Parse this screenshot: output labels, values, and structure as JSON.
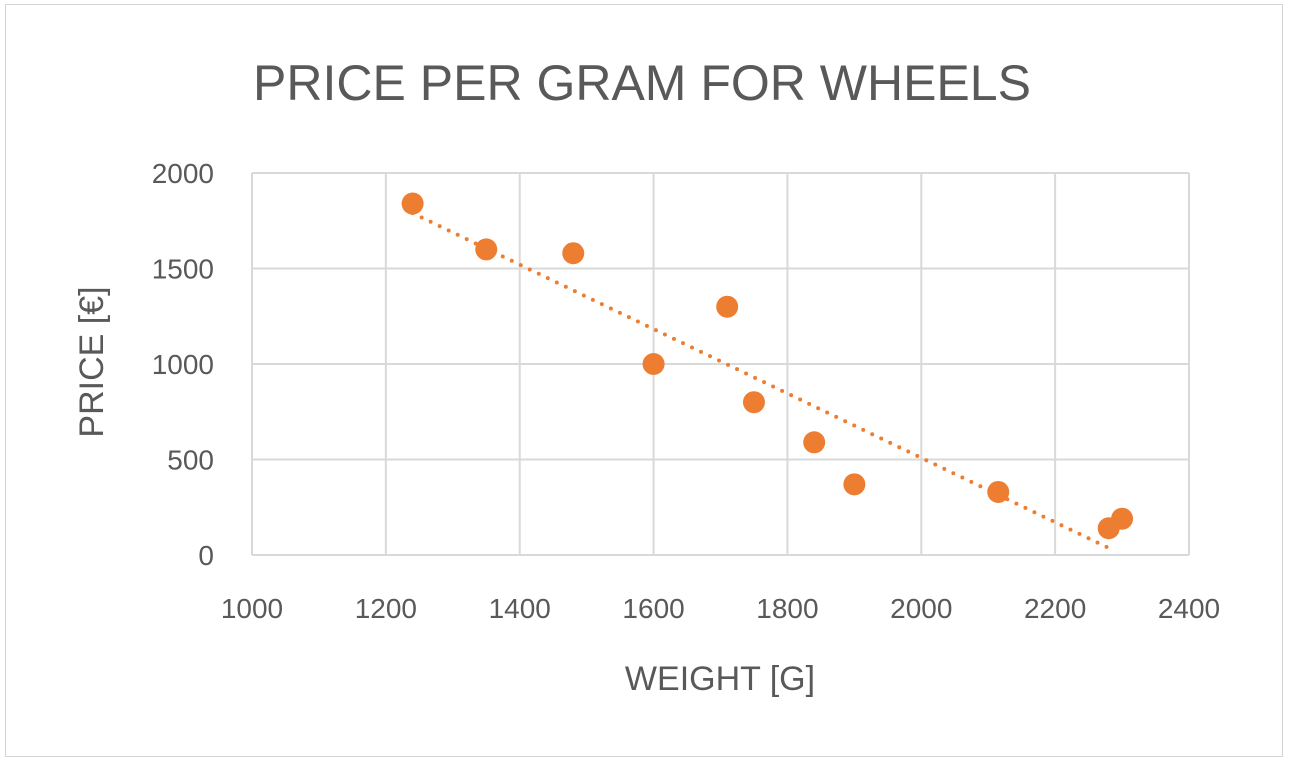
{
  "chart_data": {
    "type": "scatter",
    "title": "PRICE PER GRAM FOR WHEELS",
    "xlabel": "WEIGHT [G]",
    "ylabel": "PRICE [€]",
    "xlim": [
      1000,
      2400
    ],
    "ylim": [
      0,
      2000
    ],
    "x_ticks": [
      1000,
      1200,
      1400,
      1600,
      1800,
      2000,
      2200,
      2400
    ],
    "y_ticks": [
      0,
      500,
      1000,
      1500,
      2000
    ],
    "grid": true,
    "legend": "none",
    "series": [
      {
        "color": "#ed7d31",
        "points": [
          {
            "x": 1240,
            "y": 1840
          },
          {
            "x": 1350,
            "y": 1600
          },
          {
            "x": 1480,
            "y": 1580
          },
          {
            "x": 1600,
            "y": 1000
          },
          {
            "x": 1710,
            "y": 1300
          },
          {
            "x": 1750,
            "y": 800
          },
          {
            "x": 1840,
            "y": 590
          },
          {
            "x": 1900,
            "y": 370
          },
          {
            "x": 2115,
            "y": 330
          },
          {
            "x": 2280,
            "y": 140
          },
          {
            "x": 2300,
            "y": 190
          }
        ],
        "trendline": {
          "type": "linear",
          "style": "dotted",
          "from": {
            "x": 1240,
            "y": 1790
          },
          "to": {
            "x": 2290,
            "y": 20
          }
        }
      }
    ]
  }
}
